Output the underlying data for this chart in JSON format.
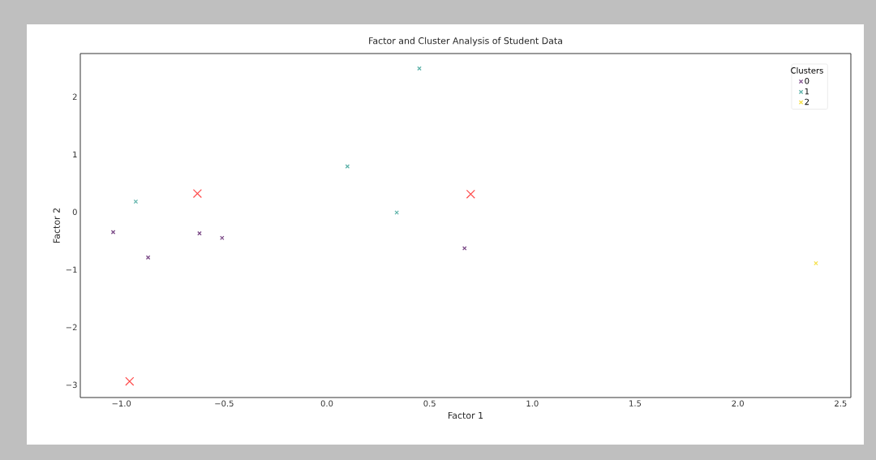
{
  "chart_data": {
    "type": "scatter",
    "title": "Factor and Cluster Analysis of Student Data",
    "xlabel": "Factor 1",
    "ylabel": "Factor 2",
    "legend_title": "Clusters",
    "legend": "top right",
    "grid": false,
    "marker": "cross",
    "xlim": [
      -1.2,
      2.55
    ],
    "ylim": [
      -3.22,
      2.75
    ],
    "xticks": [
      {
        "value": -1.0,
        "label": "−1.0"
      },
      {
        "value": -0.5,
        "label": "−0.5"
      },
      {
        "value": 0.0,
        "label": "0.0"
      },
      0.5,
      {
        "value": 1.0,
        "label": "1.0"
      },
      1.5,
      {
        "value": 2.0,
        "label": "2.0"
      },
      2.5
    ],
    "yticks": [
      {
        "value": -3,
        "label": "−3"
      },
      {
        "value": -2,
        "label": "−2"
      },
      {
        "value": -1,
        "label": "−1"
      },
      0,
      1,
      2
    ],
    "series": [
      {
        "name": "0",
        "color": "#7b4a87",
        "x": [
          -1.04,
          -0.87,
          -0.62,
          -0.51,
          0.67
        ],
        "values": [
          -0.35,
          -0.79,
          -0.37,
          -0.45,
          -0.63
        ]
      },
      {
        "name": "1",
        "color": "#5fb3aa",
        "x": [
          -0.93,
          0.1,
          0.34,
          0.45
        ],
        "values": [
          0.18,
          0.79,
          -0.01,
          2.49
        ]
      },
      {
        "name": "2",
        "color": "#f5e04a",
        "x": [
          2.38
        ],
        "values": [
          -0.89
        ]
      },
      {
        "color": "#ff4a4a",
        "x": [
          -0.63,
          0.7,
          -0.96
        ],
        "values": [
          0.32,
          0.31,
          -2.94
        ]
      }
    ]
  }
}
